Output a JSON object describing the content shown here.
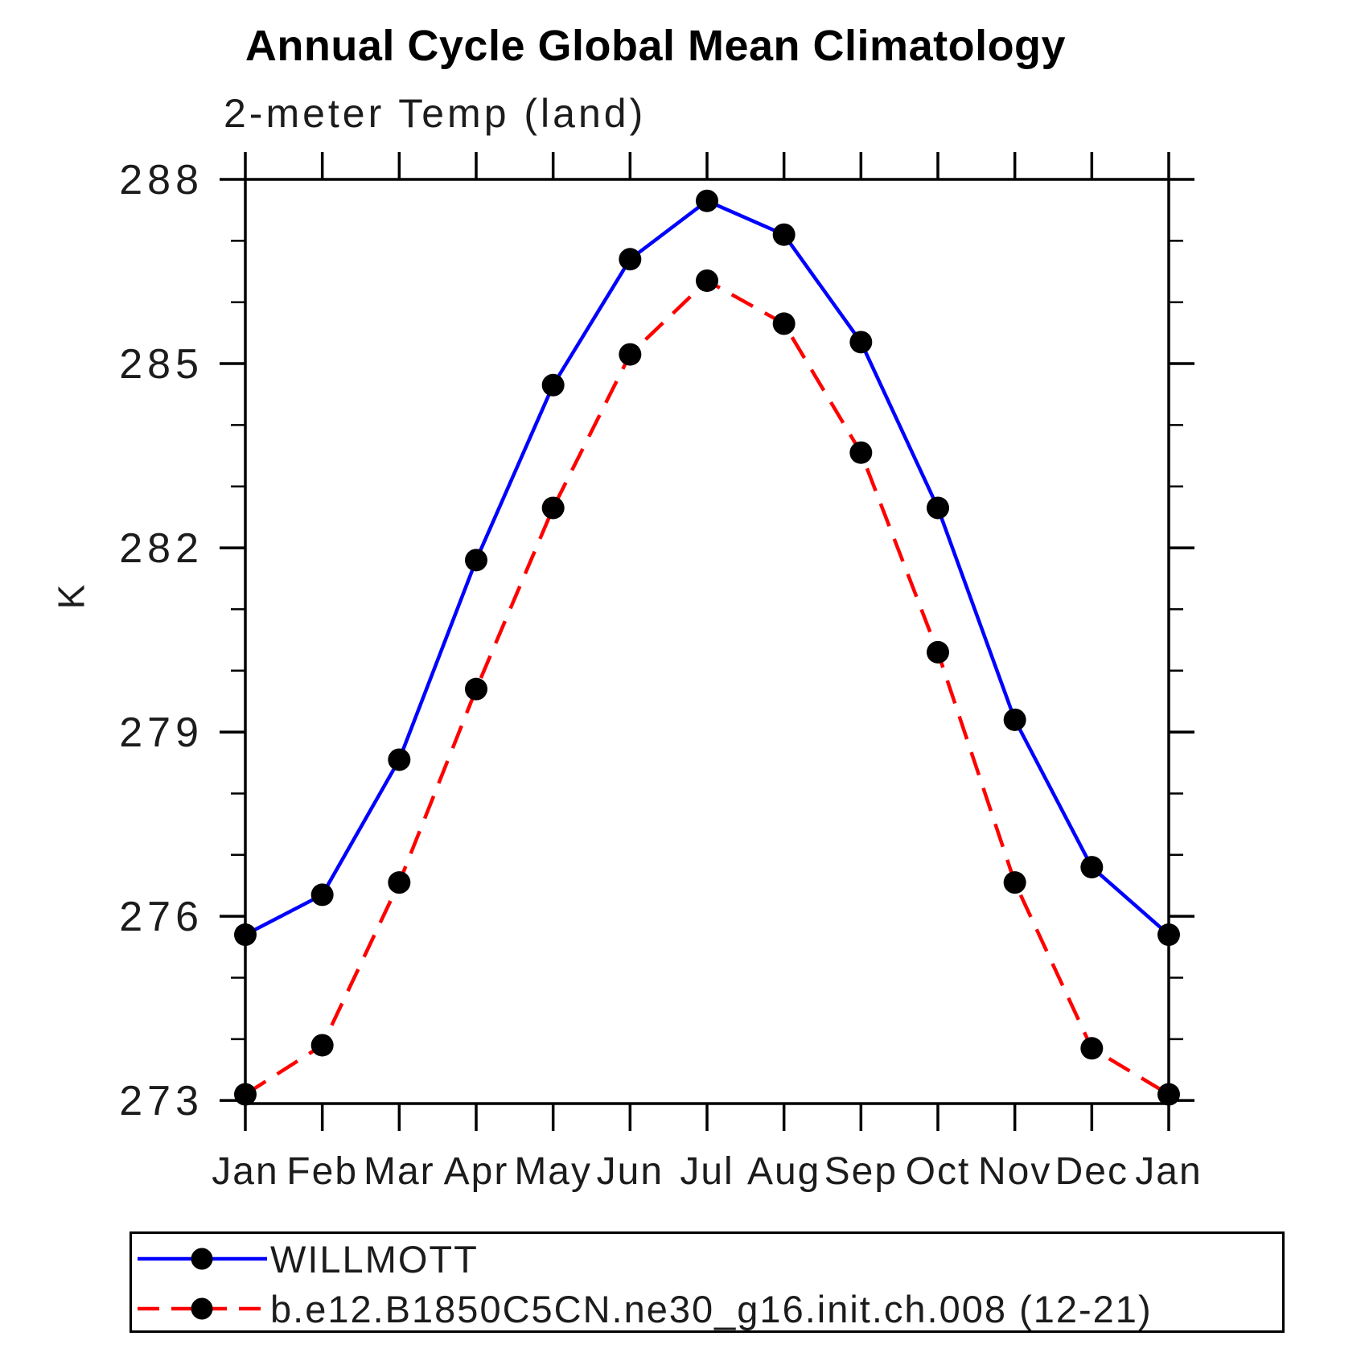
{
  "chart_data": {
    "type": "line",
    "title": "Annual Cycle Global Mean Climatology",
    "subtitle": "2-meter Temp (land)",
    "xlabel": "",
    "ylabel": "K",
    "categories": [
      "Jan",
      "Feb",
      "Mar",
      "Apr",
      "May",
      "Jun",
      "Jul",
      "Aug",
      "Sep",
      "Oct",
      "Nov",
      "Dec",
      "Jan"
    ],
    "ylim": [
      272.95,
      288
    ],
    "yticks_major": [
      273,
      276,
      279,
      282,
      285,
      288
    ],
    "ytick_minor_step": 1,
    "grid": false,
    "legend_position": "bottom-left-box",
    "frame_color": "#000000",
    "marker_shape": "filled-circle",
    "series": [
      {
        "name": "WILLMOTT",
        "color": "#0000ff",
        "line_style": "solid",
        "marker_color": "#000000",
        "values": [
          275.7,
          276.35,
          278.55,
          281.8,
          284.65,
          286.7,
          287.65,
          287.1,
          285.35,
          282.65,
          279.2,
          276.8,
          275.7
        ]
      },
      {
        "name": "b.e12.B1850C5CN.ne30_g16.init.ch.008 (12-21)",
        "color": "#ff0000",
        "line_style": "dashed",
        "marker_color": "#000000",
        "values": [
          273.1,
          273.9,
          276.55,
          279.7,
          282.65,
          285.15,
          286.35,
          285.65,
          283.55,
          280.3,
          276.55,
          273.85,
          273.1
        ]
      }
    ]
  }
}
